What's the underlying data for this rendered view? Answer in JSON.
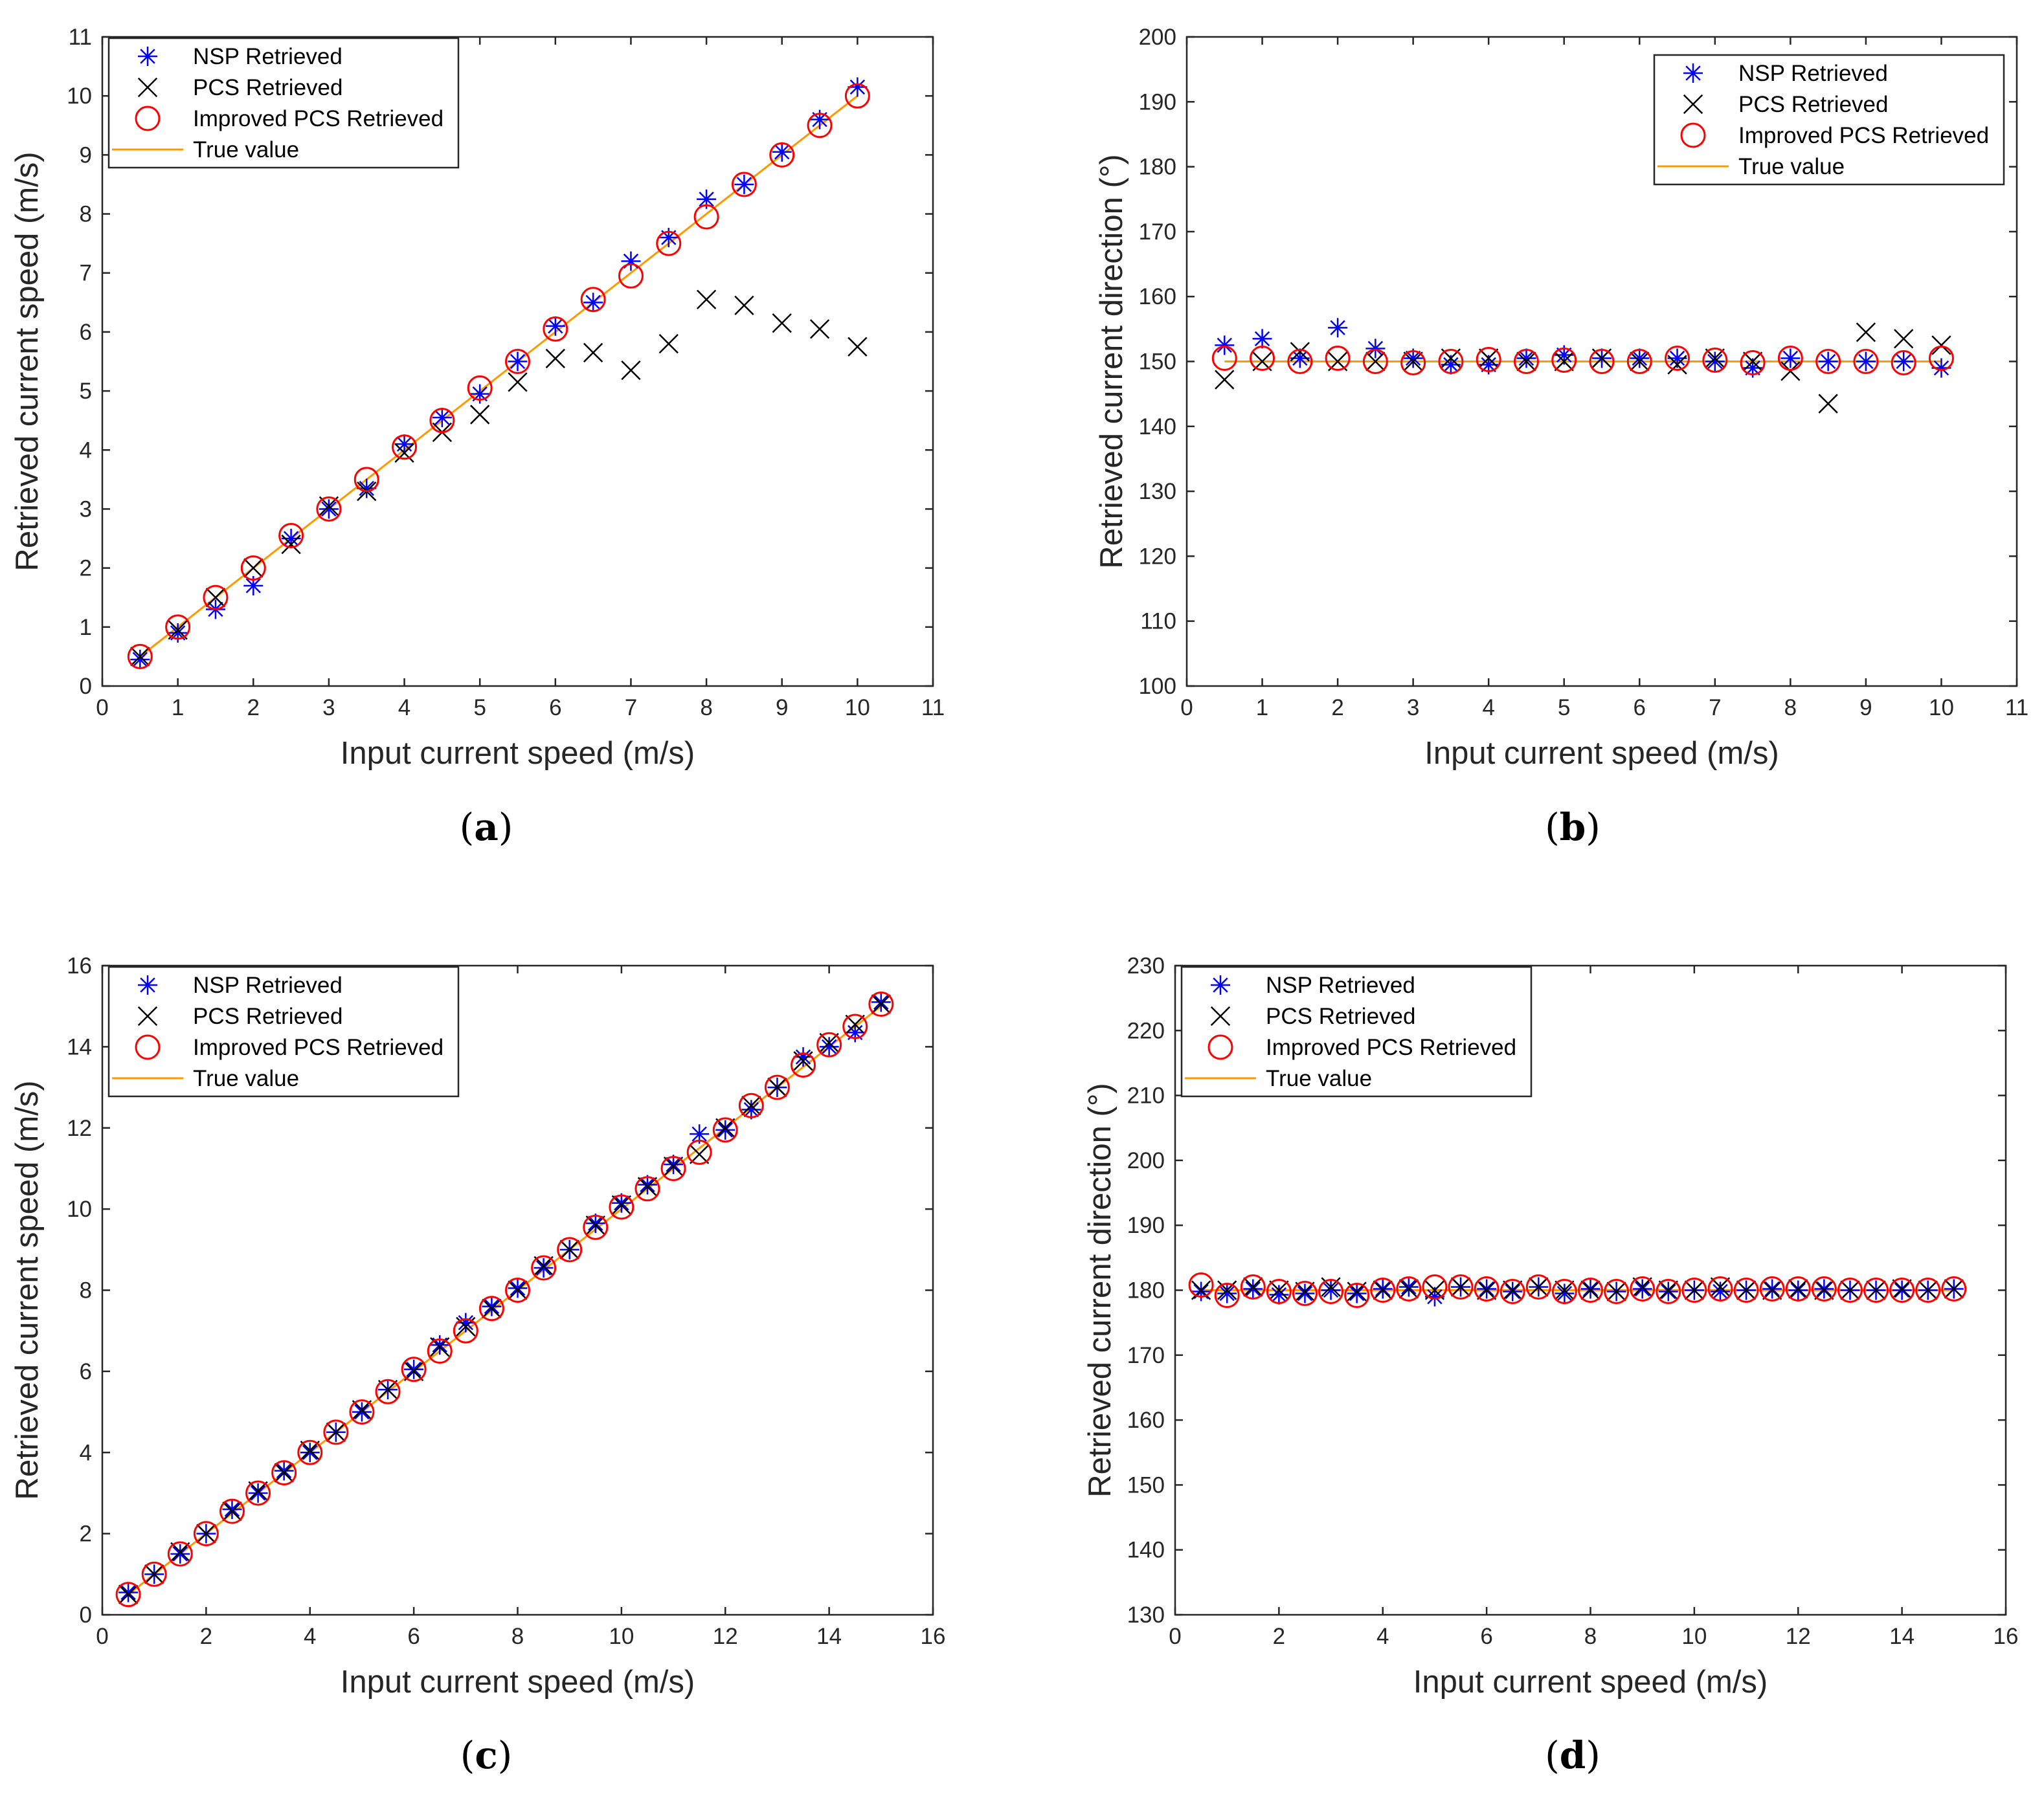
{
  "colors": {
    "nsp": "#0000ff",
    "pcs": "#000000",
    "improved": "#ff0000",
    "true_value": "#ff9900"
  },
  "chart_data": [
    {
      "id": "a",
      "type": "scatter",
      "caption": "a",
      "xlabel": "Input current speed (m/s)",
      "ylabel": "Retrieved current speed (m/s)",
      "xlim": [
        0,
        11
      ],
      "ylim": [
        0,
        11
      ],
      "xticks": [
        0,
        1,
        2,
        3,
        4,
        5,
        6,
        7,
        8,
        9,
        10,
        11
      ],
      "yticks": [
        0,
        1,
        2,
        3,
        4,
        5,
        6,
        7,
        8,
        9,
        10,
        11
      ],
      "legend": [
        "NSP Retrieved",
        "PCS Retrieved",
        "Improved PCS Retrieved",
        "True value"
      ],
      "legend_position": "top-left",
      "x": [
        0.5,
        1,
        1.5,
        2,
        2.5,
        3,
        3.5,
        4,
        4.5,
        5,
        5.5,
        6,
        6.5,
        7,
        7.5,
        8,
        8.5,
        9,
        9.5,
        10
      ],
      "series": [
        {
          "name": "NSP Retrieved",
          "values": [
            0.45,
            0.9,
            1.3,
            1.7,
            2.5,
            3.0,
            3.35,
            4.1,
            4.55,
            4.95,
            5.5,
            6.1,
            6.5,
            7.2,
            7.6,
            8.25,
            8.5,
            9.05,
            9.6,
            10.15
          ]
        },
        {
          "name": "PCS Retrieved",
          "values": [
            0.5,
            0.95,
            1.5,
            2.0,
            2.4,
            3.05,
            3.3,
            3.95,
            4.3,
            4.6,
            5.15,
            5.55,
            5.65,
            5.35,
            5.8,
            6.55,
            6.45,
            6.15,
            6.05,
            5.75
          ]
        },
        {
          "name": "Improved PCS Retrieved",
          "values": [
            0.5,
            1.0,
            1.5,
            2.0,
            2.55,
            3.0,
            3.5,
            4.05,
            4.5,
            5.05,
            5.5,
            6.05,
            6.55,
            6.95,
            7.5,
            7.95,
            8.5,
            9.0,
            9.5,
            10.0
          ]
        },
        {
          "name": "True value",
          "values": [
            0.5,
            1,
            1.5,
            2,
            2.5,
            3,
            3.5,
            4,
            4.5,
            5,
            5.5,
            6,
            6.5,
            7,
            7.5,
            8,
            8.5,
            9,
            9.5,
            10
          ]
        }
      ]
    },
    {
      "id": "b",
      "type": "scatter",
      "caption": "b",
      "xlabel": "Input current speed (m/s)",
      "ylabel": "Retrieved current direction (°)",
      "xlim": [
        0,
        11
      ],
      "ylim": [
        100,
        200
      ],
      "xticks": [
        0,
        1,
        2,
        3,
        4,
        5,
        6,
        7,
        8,
        9,
        10,
        11
      ],
      "yticks": [
        100,
        110,
        120,
        130,
        140,
        150,
        160,
        170,
        180,
        190,
        200
      ],
      "legend": [
        "NSP Retrieved",
        "PCS Retrieved",
        "Improved PCS Retrieved",
        "True value"
      ],
      "legend_position": "top-right",
      "x": [
        0.5,
        1,
        1.5,
        2,
        2.5,
        3,
        3.5,
        4,
        4.5,
        5,
        5.5,
        6,
        6.5,
        7,
        7.5,
        8,
        8.5,
        9,
        9.5,
        10
      ],
      "series": [
        {
          "name": "NSP Retrieved",
          "values": [
            152.5,
            153.5,
            150.5,
            155.2,
            152.0,
            150.5,
            149.5,
            149.5,
            150.5,
            151.0,
            150.5,
            150.5,
            150.5,
            150.0,
            149.0,
            150.5,
            150.0,
            150.0,
            150.0,
            149.0
          ]
        },
        {
          "name": "PCS Retrieved",
          "values": [
            147.2,
            150.0,
            151.5,
            150.0,
            150.0,
            150.0,
            150.5,
            150.5,
            150.0,
            150.0,
            150.5,
            150.0,
            149.5,
            150.5,
            150.0,
            148.5,
            143.5,
            154.5,
            153.5,
            152.5
          ]
        },
        {
          "name": "Improved PCS Retrieved",
          "values": [
            150.5,
            150.5,
            150.0,
            150.5,
            150.0,
            149.8,
            150.0,
            150.3,
            150.0,
            150.2,
            150.0,
            150.0,
            150.5,
            150.2,
            149.8,
            150.5,
            150.0,
            150.0,
            149.8,
            150.5
          ]
        },
        {
          "name": "True value",
          "values": [
            150,
            150,
            150,
            150,
            150,
            150,
            150,
            150,
            150,
            150,
            150,
            150,
            150,
            150,
            150,
            150,
            150,
            150,
            150,
            150
          ]
        }
      ]
    },
    {
      "id": "c",
      "type": "scatter",
      "caption": "c",
      "xlabel": "Input current speed (m/s)",
      "ylabel": "Retrieved current speed (m/s)",
      "xlim": [
        0,
        16
      ],
      "ylim": [
        0,
        16
      ],
      "xticks": [
        0,
        2,
        4,
        6,
        8,
        10,
        12,
        14,
        16
      ],
      "yticks": [
        0,
        2,
        4,
        6,
        8,
        10,
        12,
        14,
        16
      ],
      "legend": [
        "NSP Retrieved",
        "PCS Retrieved",
        "Improved PCS Retrieved",
        "True value"
      ],
      "legend_position": "top-left",
      "x": [
        0.5,
        1,
        1.5,
        2,
        2.5,
        3,
        3.5,
        4,
        4.5,
        5,
        5.5,
        6,
        6.5,
        7,
        7.5,
        8,
        8.5,
        9,
        9.5,
        10,
        10.5,
        11,
        11.5,
        12,
        12.5,
        13,
        13.5,
        14,
        14.5,
        15
      ],
      "series": [
        {
          "name": "NSP Retrieved",
          "values": [
            0.55,
            1.0,
            1.5,
            2.0,
            2.6,
            3.0,
            3.55,
            4.0,
            4.5,
            5.0,
            5.55,
            6.05,
            6.65,
            7.2,
            7.6,
            8.05,
            8.55,
            9.0,
            9.65,
            10.15,
            10.6,
            11.1,
            11.85,
            11.95,
            12.45,
            13.0,
            13.75,
            14.0,
            14.35,
            15.1
          ]
        },
        {
          "name": "PCS Retrieved",
          "values": [
            0.5,
            1.0,
            1.55,
            2.0,
            2.55,
            3.05,
            3.5,
            4.05,
            4.5,
            5.05,
            5.55,
            6.0,
            6.6,
            7.1,
            7.55,
            8.0,
            8.6,
            9.0,
            9.6,
            10.1,
            10.55,
            11.05,
            11.35,
            12.0,
            12.55,
            13.0,
            13.65,
            14.1,
            14.55,
            15.05
          ]
        },
        {
          "name": "Improved PCS Retrieved",
          "values": [
            0.5,
            1.0,
            1.5,
            2.0,
            2.55,
            3.0,
            3.5,
            4.0,
            4.5,
            5.0,
            5.5,
            6.05,
            6.5,
            7.0,
            7.55,
            8.0,
            8.55,
            9.0,
            9.55,
            10.05,
            10.5,
            11.0,
            11.4,
            11.95,
            12.55,
            13.0,
            13.55,
            14.05,
            14.5,
            15.05
          ]
        },
        {
          "name": "True value",
          "values": [
            0.5,
            1,
            1.5,
            2,
            2.5,
            3,
            3.5,
            4,
            4.5,
            5,
            5.5,
            6,
            6.5,
            7,
            7.5,
            8,
            8.5,
            9,
            9.5,
            10,
            10.5,
            11,
            11.5,
            12,
            12.5,
            13,
            13.5,
            14,
            14.5,
            15
          ]
        }
      ]
    },
    {
      "id": "d",
      "type": "scatter",
      "caption": "d",
      "xlabel": "Input current speed (m/s)",
      "ylabel": "Retrieved current direction (°)",
      "xlim": [
        0,
        16
      ],
      "ylim": [
        130,
        230
      ],
      "xticks": [
        0,
        2,
        4,
        6,
        8,
        10,
        12,
        14,
        16
      ],
      "yticks": [
        130,
        140,
        150,
        160,
        170,
        180,
        190,
        200,
        210,
        220,
        230
      ],
      "legend": [
        "NSP Retrieved",
        "PCS Retrieved",
        "Improved PCS Retrieved",
        "True value"
      ],
      "legend_position": "top-left",
      "x": [
        0.5,
        1,
        1.5,
        2,
        2.5,
        3,
        3.5,
        4,
        4.5,
        5,
        5.5,
        6,
        6.5,
        7,
        7.5,
        8,
        8.5,
        9,
        9.5,
        10,
        10.5,
        11,
        11.5,
        12,
        12.5,
        13,
        13.5,
        14,
        14.5,
        15
      ],
      "series": [
        {
          "name": "NSP Retrieved",
          "values": [
            179.8,
            179.5,
            180.2,
            179.3,
            179.5,
            180.0,
            179.5,
            180.2,
            180.5,
            179.0,
            180.5,
            180.2,
            179.8,
            180.5,
            179.5,
            180.2,
            179.8,
            180.2,
            179.8,
            180.0,
            179.8,
            180.0,
            180.2,
            180.0,
            180.2,
            180.0,
            180.0,
            180.0,
            180.0,
            180.2
          ]
        },
        {
          "name": "PCS Retrieved",
          "values": [
            180.0,
            180.0,
            180.5,
            180.0,
            179.8,
            180.5,
            179.8,
            180.0,
            180.2,
            180.0,
            180.5,
            180.0,
            180.0,
            180.5,
            180.0,
            180.0,
            179.8,
            180.5,
            180.0,
            180.0,
            180.5,
            180.0,
            180.0,
            180.2,
            180.0,
            180.0,
            180.0,
            180.2,
            180.0,
            180.2
          ]
        },
        {
          "name": "Improved PCS Retrieved",
          "values": [
            180.8,
            179.2,
            180.5,
            179.8,
            179.5,
            179.8,
            179.2,
            180.0,
            180.2,
            180.5,
            180.5,
            180.2,
            179.8,
            180.5,
            179.8,
            180.0,
            179.8,
            180.2,
            179.8,
            180.0,
            180.2,
            180.0,
            180.2,
            180.2,
            180.2,
            180.0,
            180.0,
            180.0,
            180.0,
            180.2
          ]
        },
        {
          "name": "True value",
          "values": [
            180,
            180,
            180,
            180,
            180,
            180,
            180,
            180,
            180,
            180,
            180,
            180,
            180,
            180,
            180,
            180,
            180,
            180,
            180,
            180,
            180,
            180,
            180,
            180,
            180,
            180,
            180,
            180,
            180,
            180
          ]
        }
      ]
    }
  ]
}
